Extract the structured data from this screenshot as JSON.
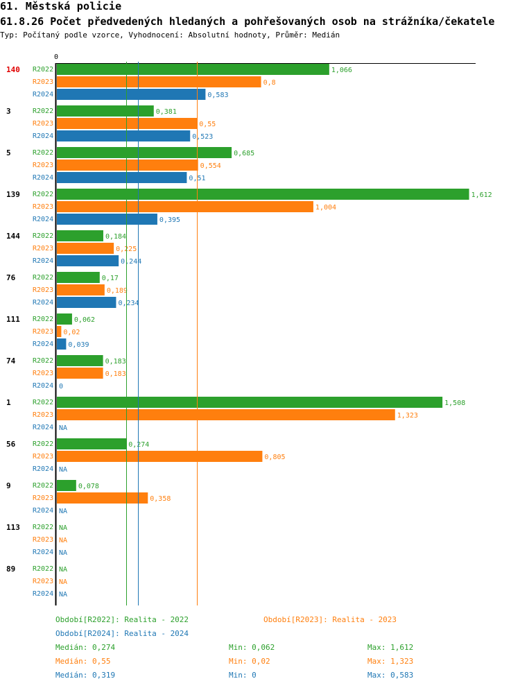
{
  "header": {
    "title": "61. Městská policie",
    "subtitle": "61.8.26 Počet předvedených hledaných a pohřešovaných osob na strážníka/čekatele",
    "type_line": "Typ: Počítaný podle vzorce, Vyhodnocení: Absolutní hodnoty, Průměr: Medián"
  },
  "colors": {
    "R2022": "#2ca02c",
    "R2023": "#ff7f0e",
    "R2024": "#1f77b4",
    "highlight": "#e00000"
  },
  "chart_data": {
    "type": "bar",
    "orientation": "horizontal",
    "axis_zero_label": "0",
    "xlim": [
      0,
      1.624
    ],
    "series_names": [
      "R2022",
      "R2023",
      "R2024"
    ],
    "groups": [
      {
        "label": "140",
        "highlight": true,
        "values": [
          1.066,
          0.8,
          0.583
        ],
        "labels": [
          "1,066",
          "0,8",
          "0,583"
        ]
      },
      {
        "label": "3",
        "values": [
          0.381,
          0.55,
          0.523
        ],
        "labels": [
          "0,381",
          "0,55",
          "0,523"
        ]
      },
      {
        "label": "5",
        "values": [
          0.685,
          0.554,
          0.51
        ],
        "labels": [
          "0,685",
          "0,554",
          "0,51"
        ]
      },
      {
        "label": "139",
        "values": [
          1.612,
          1.004,
          0.395
        ],
        "labels": [
          "1,612",
          "1,004",
          "0,395"
        ]
      },
      {
        "label": "144",
        "values": [
          0.184,
          0.225,
          0.244
        ],
        "labels": [
          "0,184",
          "0,225",
          "0,244"
        ]
      },
      {
        "label": "76",
        "values": [
          0.17,
          0.189,
          0.234
        ],
        "labels": [
          "0,17",
          "0,189",
          "0,234"
        ]
      },
      {
        "label": "111",
        "values": [
          0.062,
          0.02,
          0.039
        ],
        "labels": [
          "0,062",
          "0,02",
          "0,039"
        ]
      },
      {
        "label": "74",
        "values": [
          0.183,
          0.183,
          0
        ],
        "labels": [
          "0,183",
          "0,183",
          "0"
        ]
      },
      {
        "label": "1",
        "values": [
          1.508,
          1.323,
          null
        ],
        "labels": [
          "1,508",
          "1,323",
          "NA"
        ]
      },
      {
        "label": "56",
        "values": [
          0.274,
          0.805,
          null
        ],
        "labels": [
          "0,274",
          "0,805",
          "NA"
        ]
      },
      {
        "label": "9",
        "values": [
          0.078,
          0.358,
          null
        ],
        "labels": [
          "0,078",
          "0,358",
          "NA"
        ]
      },
      {
        "label": "113",
        "values": [
          null,
          null,
          null
        ],
        "labels": [
          "NA",
          "NA",
          "NA"
        ]
      },
      {
        "label": "89",
        "values": [
          null,
          null,
          null
        ],
        "labels": [
          "NA",
          "NA",
          "NA"
        ]
      }
    ],
    "median_lines": [
      0.274,
      0.55,
      0.319
    ]
  },
  "legend": {
    "period_r2022": "Období[R2022]: Realita - 2022",
    "period_r2023": "Období[R2023]: Realita - 2023",
    "period_r2024": "Období[R2024]: Realita - 2024",
    "stats": [
      {
        "median": "Medián: 0,274",
        "min": "Min: 0,062",
        "max": "Max: 1,612"
      },
      {
        "median": "Medián: 0,55",
        "min": "Min: 0,02",
        "max": "Max: 1,323"
      },
      {
        "median": "Medián: 0,319",
        "min": "Min: 0",
        "max": "Max: 0,583"
      }
    ]
  }
}
